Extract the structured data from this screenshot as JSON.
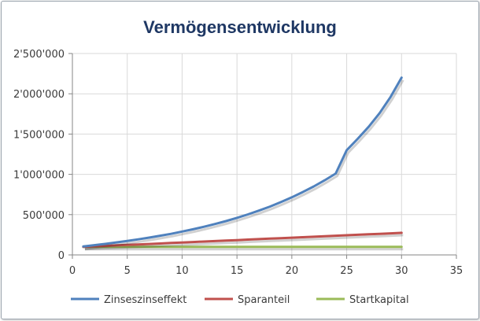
{
  "chart_data": {
    "type": "line",
    "title": "Vermögensentwicklung",
    "xlabel": "",
    "ylabel": "",
    "xlim": [
      0,
      35
    ],
    "ylim": [
      0,
      2500000
    ],
    "x_ticks": [
      0,
      5,
      10,
      15,
      20,
      25,
      30,
      35
    ],
    "x_tick_labels": [
      "0",
      "5",
      "10",
      "15",
      "20",
      "25",
      "30",
      "35"
    ],
    "y_ticks": [
      0,
      500000,
      1000000,
      1500000,
      2000000,
      2500000
    ],
    "y_tick_labels": [
      "0",
      "500'000",
      "1'000'000",
      "1'500'000",
      "2'000'000",
      "2'500'000"
    ],
    "grid": true,
    "legend_position": "bottom",
    "x": [
      1,
      2,
      3,
      4,
      5,
      6,
      7,
      8,
      9,
      10,
      11,
      12,
      13,
      14,
      15,
      16,
      17,
      18,
      19,
      20,
      21,
      22,
      23,
      24,
      25,
      26,
      27,
      28,
      29,
      30
    ],
    "series": [
      {
        "name": "Zinseszinseffekt",
        "color": "#4f81bd",
        "values": [
          105000,
          121000,
          137000,
          155000,
          173000,
          193000,
          215000,
          238000,
          262000,
          290000,
          318000,
          350000,
          384000,
          420000,
          460000,
          503000,
          550000,
          600000,
          655000,
          715000,
          780000,
          850000,
          927000,
          1010000,
          1300000,
          1440000,
          1590000,
          1760000,
          1960000,
          2200000
        ]
      },
      {
        "name": "Sparanteil",
        "color": "#c0504d",
        "values": [
          100000,
          106000,
          112000,
          118000,
          124000,
          130000,
          136000,
          142000,
          148000,
          154000,
          160000,
          166000,
          172000,
          178000,
          184000,
          190000,
          196000,
          202000,
          208000,
          214000,
          220000,
          226000,
          232000,
          238000,
          244000,
          250000,
          256000,
          262000,
          268000,
          274000
        ]
      },
      {
        "name": "Startkapital",
        "color": "#9bbb59",
        "values": [
          100000,
          100000,
          100000,
          100000,
          100000,
          100000,
          100000,
          100000,
          100000,
          100000,
          100000,
          100000,
          100000,
          100000,
          100000,
          100000,
          100000,
          100000,
          100000,
          100000,
          100000,
          100000,
          100000,
          100000,
          100000,
          100000,
          100000,
          100000,
          100000,
          100000
        ]
      }
    ]
  }
}
